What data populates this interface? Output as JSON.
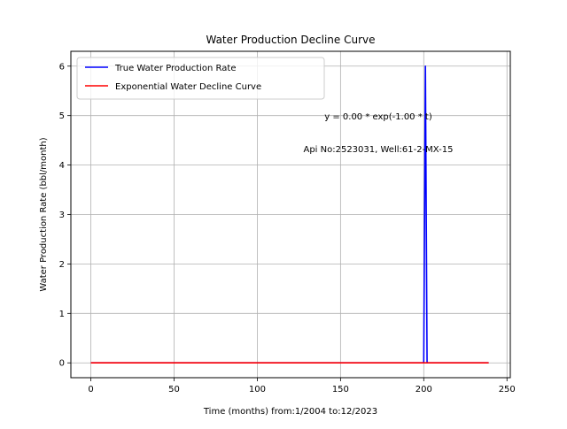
{
  "chart_data": {
    "type": "line",
    "title": "Water Production Decline Curve",
    "xlabel": "Time (months) from:1/2004 to:12/2023",
    "ylabel": "Water Production Rate (bbl/month)",
    "xlim": [
      -12,
      252
    ],
    "ylim": [
      -0.3,
      6.3
    ],
    "xticks": [
      0,
      50,
      100,
      150,
      200,
      250
    ],
    "yticks": [
      0,
      1,
      2,
      3,
      4,
      5,
      6
    ],
    "grid": true,
    "legend_position": "upper-left",
    "series": [
      {
        "name": "True Water Production Rate",
        "color": "#0000ff",
        "x": [
          0,
          199,
          200,
          201,
          202,
          239
        ],
        "y": [
          0,
          0,
          0,
          6,
          0,
          0
        ]
      },
      {
        "name": "Exponential Water Decline Curve",
        "color": "#ff0000",
        "x": [
          0,
          239
        ],
        "y": [
          0,
          0
        ]
      }
    ],
    "annotations": [
      {
        "text": "y = 0.00 * exp(-1.00 * t)"
      },
      {
        "text": "Api No:2523031, Well:61-2-MX-15"
      }
    ]
  }
}
